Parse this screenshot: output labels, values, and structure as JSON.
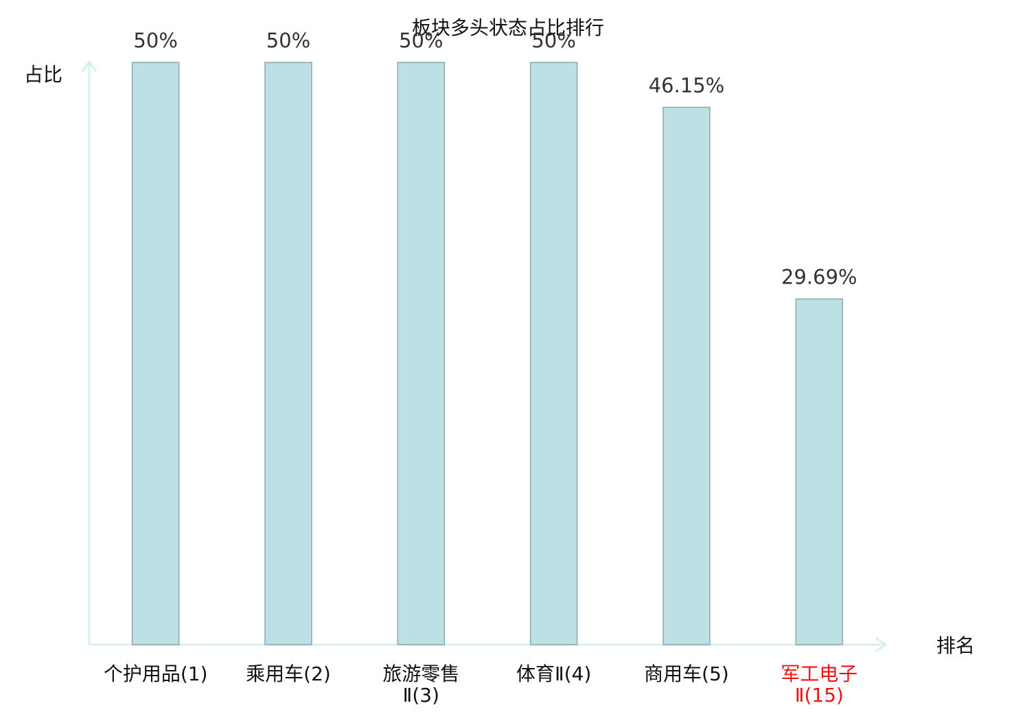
{
  "chart_data": {
    "type": "bar",
    "title": "板块多头状态占比排行",
    "x_label": "排名",
    "y_label": "占比",
    "categories": [
      "个护用品(1)",
      "乘用车(2)",
      "旅游零售Ⅱ(3)",
      "体育Ⅱ(4)",
      "商用车(5)",
      "军工电子Ⅱ(15)"
    ],
    "label_colors": [
      "#111111",
      "#111111",
      "#111111",
      "#111111",
      "#111111",
      "#ee1111"
    ],
    "values": [
      50,
      50,
      50,
      50,
      46.15,
      29.69
    ],
    "value_labels": [
      "50%",
      "50%",
      "50%",
      "50%",
      "46.15%",
      "29.69%"
    ],
    "color": "#bce0e3",
    "edge_color": "#8aa8ac",
    "axis_color": "#d8f0ec",
    "ylim": [
      0,
      50
    ]
  }
}
